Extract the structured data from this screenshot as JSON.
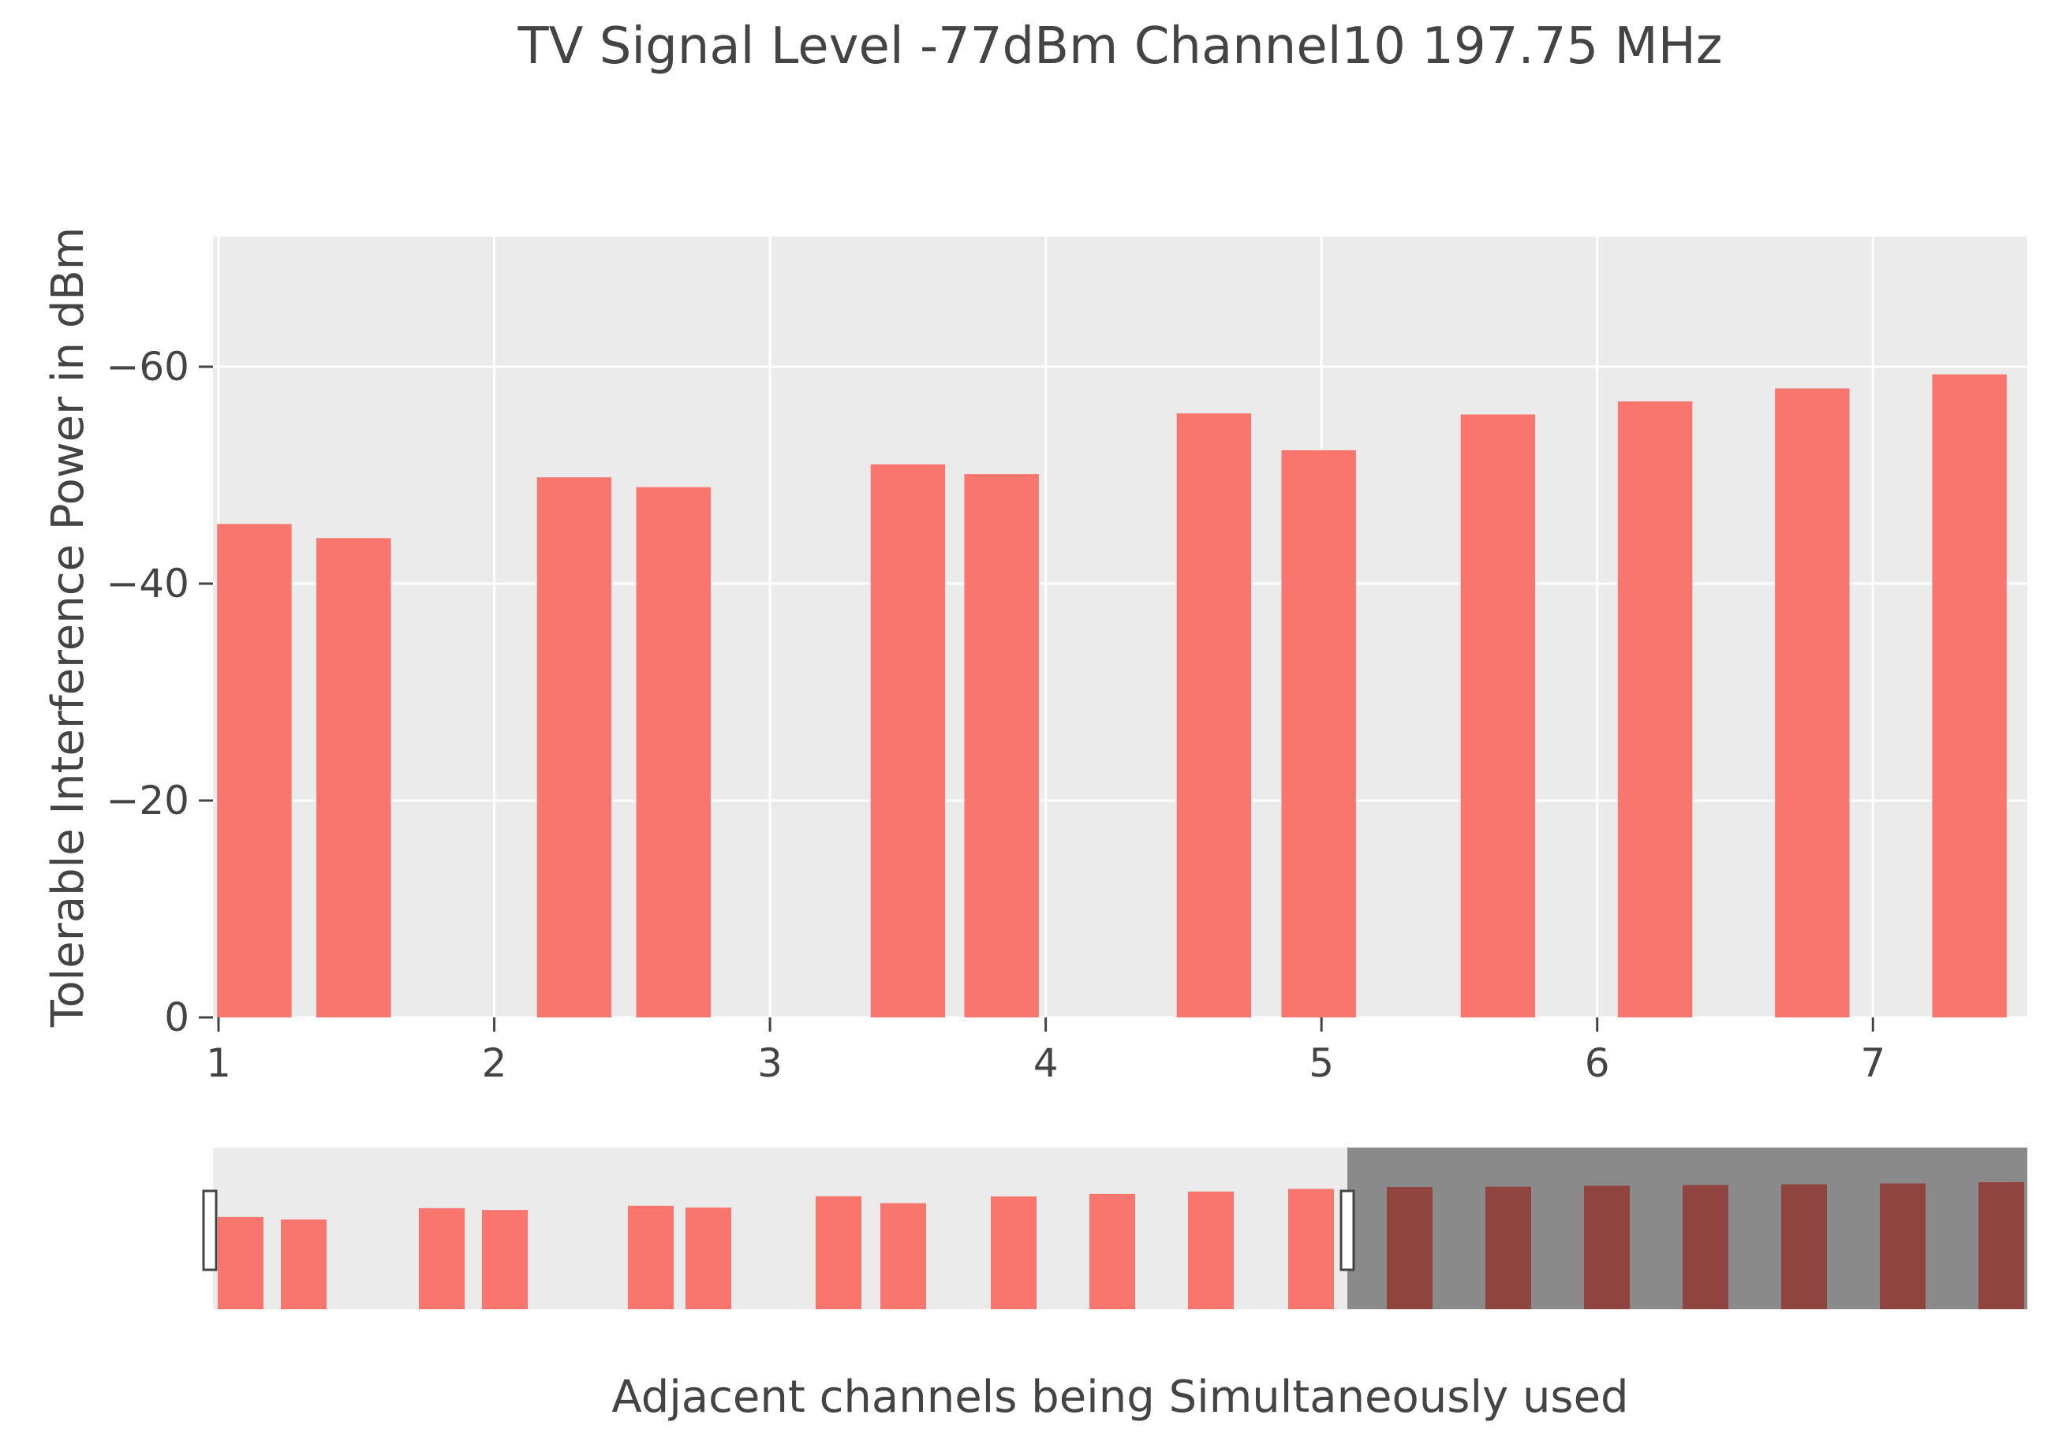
{
  "chart_data": {
    "type": "bar",
    "title": "TV Signal Level -77dBm Channel10 197.75 MHz",
    "xlabel": "Adjacent channels being Simultaneously used",
    "ylabel": "Tolerable Interference Power in dBm",
    "x_ticks": [
      "1",
      "2",
      "3",
      "4",
      "5",
      "6",
      "7"
    ],
    "y_ticks": [
      "0",
      "−20",
      "−40",
      "−60"
    ],
    "y_axis_reversed": true,
    "xlim": [
      0.98,
      7.56
    ],
    "ylim": [
      0,
      -72
    ],
    "grid": true,
    "bar_width": 0.27,
    "series": [
      {
        "x": [
          1.13,
          1.49,
          2.29,
          2.65,
          3.5,
          3.84,
          4.61,
          4.99,
          5.64,
          6.21,
          6.78,
          7.35
        ],
        "values": [
          -45.5,
          -44.2,
          -49.8,
          -48.9,
          -51.0,
          -50.1,
          -55.7,
          -52.3,
          -55.6,
          -56.8,
          -58.0,
          -59.3
        ]
      }
    ],
    "range_slider": {
      "selected_range": [
        0.98,
        5.1
      ],
      "visible": true
    },
    "colors": {
      "bar": "#f8766d",
      "bar_unselected": "#8f4440",
      "plot_bg": "#ebebeb",
      "grid": "#ffffff",
      "slider_bg": "#ebebeb",
      "slider_mask": "#8a8a8a",
      "text": "#444444"
    }
  }
}
